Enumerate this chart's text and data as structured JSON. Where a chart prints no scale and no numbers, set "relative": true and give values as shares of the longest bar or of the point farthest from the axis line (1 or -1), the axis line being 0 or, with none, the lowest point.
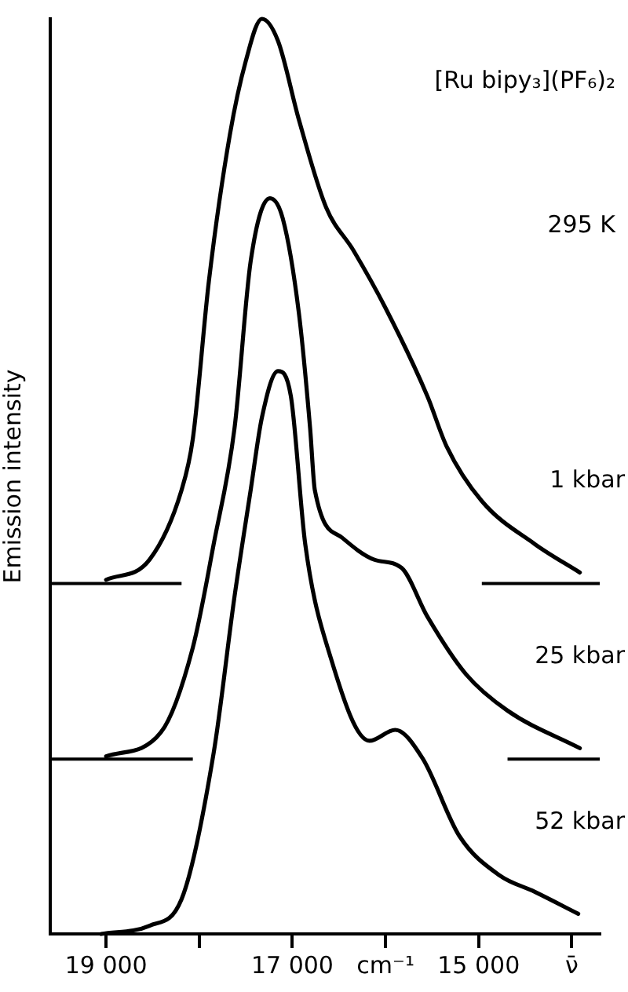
{
  "chart_data": {
    "type": "line",
    "relative": true,
    "ylabel": "Emission intensity",
    "annotations": [
      "[Ru bipy₃](PF₆)₂",
      "295 K"
    ],
    "xlim": [
      19600,
      13700
    ],
    "xticks": [
      {
        "value": 19000,
        "label": "19 000"
      },
      {
        "value": 18000,
        "label": null
      },
      {
        "value": 17000,
        "label": "17 000"
      },
      {
        "value": 16000,
        "label": "cm⁻¹"
      },
      {
        "value": 15000,
        "label": "15 000"
      },
      {
        "value": 14000,
        "label": "ν̄"
      }
    ],
    "series": [
      {
        "name": "1 kbar",
        "color": "#000000",
        "x": [
          19000,
          18534,
          18190,
          18069,
          17897,
          17672,
          17500,
          17328,
          17155,
          16931,
          16638,
          16345,
          16000,
          15552,
          15345,
          14966,
          14397,
          13914
        ],
        "values": [
          0.387,
          0.409,
          0.485,
          0.541,
          0.713,
          0.873,
          0.954,
          1.0,
          0.976,
          0.89,
          0.794,
          0.747,
          0.684,
          0.588,
          0.533,
          0.473,
          0.426,
          0.395
        ]
      },
      {
        "name": "25 kbar",
        "color": "#000000",
        "x": [
          19000,
          18414,
          18069,
          17845,
          17621,
          17448,
          17241,
          17104,
          16931,
          16810,
          16759,
          16466,
          16121,
          15828,
          15552,
          15138,
          14690,
          13914
        ],
        "values": [
          0.194,
          0.22,
          0.313,
          0.426,
          0.553,
          0.735,
          0.804,
          0.782,
          0.679,
          0.553,
          0.485,
          0.433,
          0.409,
          0.4,
          0.347,
          0.284,
          0.244,
          0.203
        ]
      },
      {
        "name": "52 kbar",
        "color": "#000000",
        "x": [
          19052,
          18534,
          18190,
          17845,
          17621,
          17448,
          17328,
          17155,
          17017,
          16862,
          16586,
          16172,
          15897,
          15603,
          15207,
          14776,
          14397,
          13931
        ],
        "values": [
          0.0,
          0.009,
          0.038,
          0.198,
          0.369,
          0.485,
          0.564,
          0.615,
          0.588,
          0.426,
          0.301,
          0.211,
          0.223,
          0.192,
          0.107,
          0.064,
          0.046,
          0.022
        ]
      }
    ],
    "ref_lines": [
      {
        "axis": "y",
        "value": 0.383
      },
      {
        "axis": "y",
        "value": 0.191
      }
    ],
    "grid": false,
    "legend": false,
    "marker": "none",
    "line_style": "solid"
  }
}
